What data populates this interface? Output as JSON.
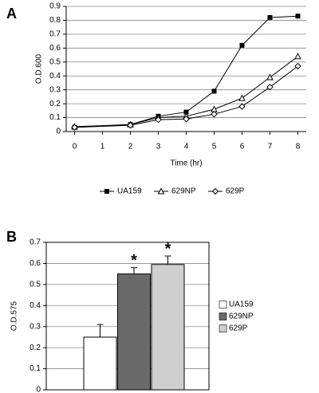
{
  "chart_data": [
    {
      "type": "line",
      "panel": "A",
      "x_label": "Time (hr)",
      "y_label": "O.D.600",
      "x": [
        0,
        2,
        3,
        4,
        5,
        6,
        7,
        8
      ],
      "xlim": [
        -0.3,
        8.3
      ],
      "xticks": [
        0,
        1,
        2,
        3,
        4,
        5,
        6,
        7,
        8
      ],
      "ylim": [
        0,
        0.9
      ],
      "yticks": [
        0,
        0.1,
        0.2,
        0.3,
        0.4,
        0.5,
        0.6,
        0.7,
        0.8,
        0.9
      ],
      "grid": true,
      "legend": "bottom",
      "series": [
        {
          "name": "UA159",
          "color": "#000000",
          "marker": "square",
          "values": [
            0.03,
            0.05,
            0.11,
            0.14,
            0.29,
            0.62,
            0.82,
            0.83
          ]
        },
        {
          "name": "629NP",
          "color": "#000000",
          "marker": "triangle",
          "values": [
            0.035,
            0.05,
            0.1,
            0.11,
            0.16,
            0.24,
            0.39,
            0.54
          ]
        },
        {
          "name": "629P",
          "color": "#000000",
          "marker": "diamond",
          "values": [
            0.03,
            0.045,
            0.085,
            0.09,
            0.125,
            0.18,
            0.32,
            0.47
          ]
        }
      ]
    },
    {
      "type": "bar",
      "panel": "B",
      "y_label": "O.D.575",
      "ylim": [
        0,
        0.7
      ],
      "yticks": [
        0,
        0.1,
        0.2,
        0.3,
        0.4,
        0.5,
        0.6,
        0.7
      ],
      "grid": true,
      "legend": "right",
      "series": [
        {
          "name": "UA159",
          "color": "#ffffff",
          "values": [
            0.25
          ],
          "errors": [
            0.06
          ]
        },
        {
          "name": "629NP",
          "color": "#6a6a6a",
          "values": [
            0.55
          ],
          "errors": [
            0.03
          ],
          "annotation": "*"
        },
        {
          "name": "629P",
          "color": "#cfcfcf",
          "values": [
            0.595
          ],
          "errors": [
            0.04
          ],
          "annotation": "*"
        }
      ]
    }
  ]
}
